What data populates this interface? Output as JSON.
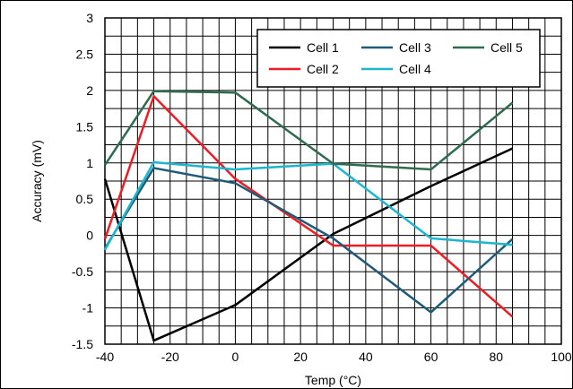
{
  "chart_data": {
    "type": "line",
    "title": "",
    "xlabel": "Temp (°C)",
    "ylabel": "Accuracy (mV)",
    "xlim": [
      -40,
      100
    ],
    "ylim": [
      -1.5,
      3
    ],
    "xticks": [
      -40,
      -20,
      0,
      20,
      40,
      60,
      80,
      100
    ],
    "yticks": [
      -1.5,
      -1,
      -0.5,
      0,
      0.5,
      1,
      1.5,
      2,
      2.5,
      3
    ],
    "xtick_labels": [
      "-40",
      "-20",
      "0",
      "20",
      "40",
      "60",
      "80",
      "100"
    ],
    "ytick_labels": [
      "-1.5",
      "-1",
      "-0.5",
      "0",
      "0.5",
      "1",
      "1.5",
      "2",
      "2.5",
      "3"
    ],
    "grid": true,
    "legend_position": "top-right",
    "series": [
      {
        "name": "Cell 1",
        "color": "#000000",
        "x": [
          -40,
          -25,
          0,
          30,
          60,
          85
        ],
        "y": [
          0.78,
          -1.45,
          -0.96,
          0.02,
          0.68,
          1.2
        ]
      },
      {
        "name": "Cell 2",
        "color": "#ee1c24",
        "x": [
          -40,
          -25,
          0,
          30,
          60,
          85
        ],
        "y": [
          -0.05,
          1.92,
          0.78,
          -0.14,
          -0.14,
          -1.12
        ]
      },
      {
        "name": "Cell 3",
        "color": "#1f5a78",
        "x": [
          -40,
          -25,
          0,
          30,
          60,
          85
        ],
        "y": [
          -0.18,
          0.93,
          0.72,
          -0.04,
          -1.06,
          -0.05
        ]
      },
      {
        "name": "Cell 4",
        "color": "#1ab7cf",
        "x": [
          -40,
          -25,
          0,
          30,
          60,
          85
        ],
        "y": [
          -0.2,
          1.01,
          0.91,
          0.99,
          -0.04,
          -0.13
        ]
      },
      {
        "name": "Cell 5",
        "color": "#2e6b4f",
        "x": [
          -40,
          -25,
          0,
          30,
          60,
          85
        ],
        "y": [
          0.97,
          1.99,
          1.97,
          0.99,
          0.91,
          1.83
        ]
      }
    ]
  }
}
